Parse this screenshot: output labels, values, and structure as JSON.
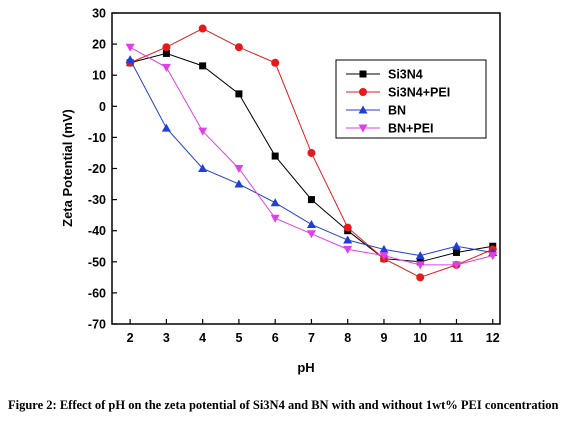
{
  "chart_data": {
    "type": "line",
    "xlabel": "pH",
    "ylabel": "Zeta Potential (mV)",
    "xlim": [
      1.5,
      12.2
    ],
    "ylim": [
      -70,
      30
    ],
    "xticks": [
      2,
      3,
      4,
      5,
      6,
      7,
      8,
      9,
      10,
      11,
      12
    ],
    "yticks": [
      -70,
      -60,
      -50,
      -40,
      -30,
      -20,
      -10,
      0,
      10,
      20,
      30
    ],
    "grid": false,
    "legend_position": "top-right",
    "x": [
      2,
      3,
      4,
      5,
      6,
      7,
      8,
      9,
      10,
      11,
      12
    ],
    "series": [
      {
        "name": "Si3N4",
        "color": "#000000",
        "marker": "square",
        "values": [
          14,
          17,
          13,
          4,
          -16,
          -30,
          -40,
          -49,
          -50,
          -47,
          -45
        ]
      },
      {
        "name": "Si3N4+PEI",
        "color": "#e41a1c",
        "marker": "circle",
        "values": [
          14,
          19,
          25,
          19,
          14,
          -15,
          -39,
          -49,
          -55,
          -51,
          -46
        ]
      },
      {
        "name": "BN",
        "color": "#1f3fd6",
        "marker": "triangle-up",
        "values": [
          15,
          -7,
          -20,
          -25,
          -31,
          -38,
          -43,
          -46,
          -48,
          -45,
          -47
        ]
      },
      {
        "name": "BN+PEI",
        "color": "#e040e8",
        "marker": "triangle-down",
        "values": [
          19,
          12.5,
          -8,
          -20,
          -36,
          -41,
          -46,
          -48,
          -51,
          -51,
          -48
        ]
      }
    ]
  },
  "caption": "Figure 2: Effect of pH on the zeta potential of Si3N4 and BN with and without 1wt% PEI concentration"
}
